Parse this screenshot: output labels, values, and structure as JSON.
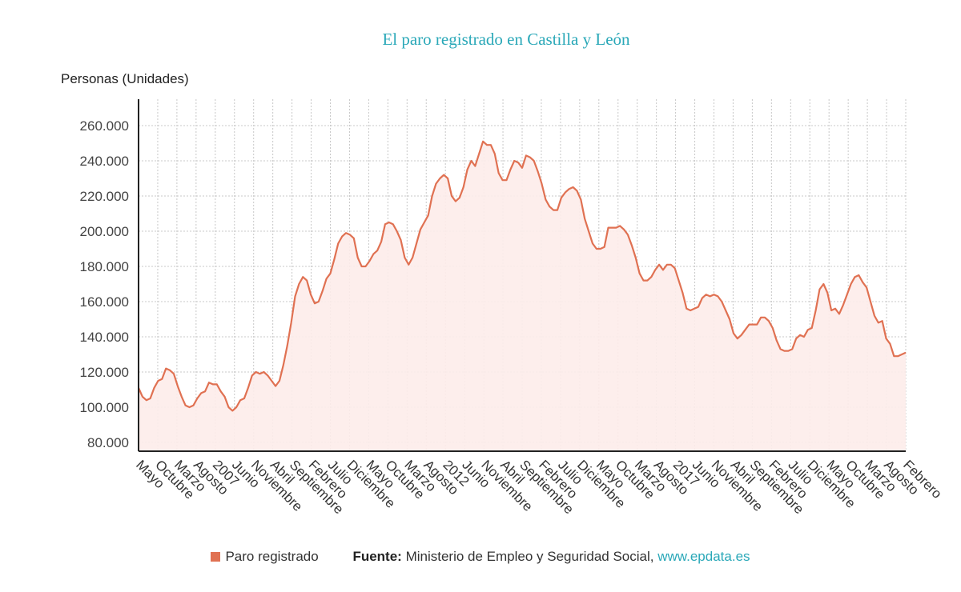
{
  "chart_data": {
    "type": "area",
    "title": "El paro registrado en Castilla y León",
    "ylabel": "Personas (Unidades)",
    "ylim": [
      75000,
      275000
    ],
    "yticks": [
      80000,
      100000,
      120000,
      140000,
      160000,
      180000,
      200000,
      220000,
      240000,
      260000
    ],
    "ytick_labels": [
      "80.000",
      "100.000",
      "120.000",
      "140.000",
      "160.000",
      "180.000",
      "200.000",
      "220.000",
      "240.000",
      "260.000"
    ],
    "grid": true,
    "x_labels": [
      "Mayo",
      "Octubre",
      "Marzo",
      "Agosto",
      "2007",
      "Junio",
      "Noviembre",
      "Abril",
      "Septiembre",
      "Febrero",
      "Julio",
      "Diciembre",
      "Mayo",
      "Octubre",
      "Marzo",
      "Agosto",
      "2012",
      "Junio",
      "Noviembre",
      "Abril",
      "Septiembre",
      "Febrero",
      "Julio",
      "Diciembre",
      "Mayo",
      "Octubre",
      "Marzo",
      "Agosto",
      "2017",
      "Junio",
      "Noviembre",
      "Abril",
      "Septiembre",
      "Febrero",
      "Julio",
      "Diciembre",
      "Mayo",
      "Octubre",
      "Marzo",
      "Agosto",
      "Febrero"
    ],
    "series": [
      {
        "name": "Paro registrado",
        "color": "#e07152",
        "fill": "#fdecea",
        "values": [
          111000,
          106000,
          104000,
          105000,
          111000,
          115000,
          116000,
          122000,
          121000,
          119000,
          112000,
          106000,
          101000,
          100000,
          101000,
          105000,
          108000,
          109000,
          114000,
          113000,
          113000,
          109000,
          106000,
          100000,
          98000,
          100000,
          104000,
          105000,
          111000,
          118000,
          120000,
          119000,
          120000,
          118000,
          115000,
          112000,
          115000,
          124000,
          135000,
          148000,
          163000,
          170000,
          174000,
          172000,
          164000,
          159000,
          160000,
          166000,
          173000,
          176000,
          184000,
          193000,
          197000,
          199000,
          198000,
          196000,
          185000,
          180000,
          180000,
          183000,
          187000,
          189000,
          194000,
          204000,
          205000,
          204000,
          200000,
          195000,
          185000,
          181000,
          185000,
          193000,
          201000,
          205000,
          209000,
          220000,
          227000,
          230000,
          232000,
          230000,
          220000,
          217000,
          219000,
          225000,
          235000,
          240000,
          237000,
          244000,
          251000,
          249000,
          249000,
          244000,
          233000,
          229000,
          229000,
          235000,
          240000,
          239000,
          236000,
          243000,
          242000,
          240000,
          234000,
          227000,
          218000,
          214000,
          212000,
          212000,
          219000,
          222000,
          224000,
          225000,
          223000,
          218000,
          207000,
          200000,
          193000,
          190000,
          190000,
          191000,
          202000,
          202000,
          202000,
          203000,
          201000,
          198000,
          192000,
          185000,
          176000,
          172000,
          172000,
          174000,
          178000,
          181000,
          178000,
          181000,
          181000,
          179000,
          172000,
          165000,
          156000,
          155000,
          156000,
          157000,
          162000,
          164000,
          163000,
          164000,
          163000,
          160000,
          155000,
          150000,
          142000,
          139000,
          141000,
          144000,
          147000,
          147000,
          147000,
          151000,
          151000,
          149000,
          145000,
          138000,
          133000,
          132000,
          132000,
          133000,
          139000,
          141000,
          140000,
          144000,
          145000,
          155000,
          167000,
          170000,
          165000,
          155000,
          156000,
          153000,
          158000,
          164000,
          170000,
          174000,
          175000,
          171000,
          168000,
          160000,
          152000,
          148000,
          149000,
          139000,
          136000,
          129000,
          129000,
          130000,
          131000
        ]
      }
    ]
  },
  "legend": {
    "label": "Paro registrado",
    "color": "#e07152"
  },
  "source": {
    "prefix": "Fuente:",
    "text": "Ministerio de Empleo y Seguridad Social,",
    "link": "www.epdata.es"
  }
}
